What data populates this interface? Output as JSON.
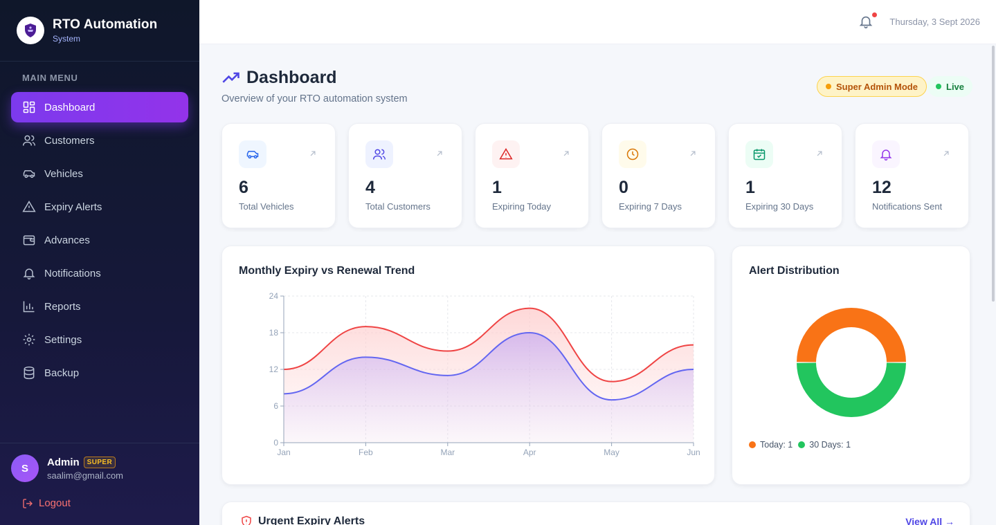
{
  "brand": {
    "title": "RTO Automation",
    "subtitle": "System"
  },
  "sidebar": {
    "caption": "MAIN MENU",
    "items": [
      {
        "label": "Dashboard",
        "icon": "grid-icon",
        "active": true
      },
      {
        "label": "Customers",
        "icon": "users-icon"
      },
      {
        "label": "Vehicles",
        "icon": "car-icon"
      },
      {
        "label": "Expiry Alerts",
        "icon": "warning-icon"
      },
      {
        "label": "Advances",
        "icon": "wallet-icon"
      },
      {
        "label": "Notifications",
        "icon": "bell-icon"
      },
      {
        "label": "Reports",
        "icon": "bar-chart-icon"
      },
      {
        "label": "Settings",
        "icon": "gear-icon"
      },
      {
        "label": "Backup",
        "icon": "database-icon"
      }
    ]
  },
  "user": {
    "initial": "S",
    "name": "Admin",
    "role": "SUPER",
    "email": "saalim@gmail.com",
    "logout": "Logout"
  },
  "topbar": {
    "date": "Thursday, 3 Sept 2026",
    "has_unread": true
  },
  "page": {
    "title": "Dashboard",
    "subtitle": "Overview of your RTO automation system",
    "mode_badge": "Super Admin Mode",
    "live_badge": "Live"
  },
  "stats": [
    {
      "value": "6",
      "label": "Total Vehicles",
      "icon": "car-icon",
      "color": "#2563eb",
      "bg": "#eff6ff"
    },
    {
      "value": "4",
      "label": "Total Customers",
      "icon": "users-icon",
      "color": "#4f46e5",
      "bg": "#eef2ff"
    },
    {
      "value": "1",
      "label": "Expiring Today",
      "icon": "warning-icon",
      "color": "#dc2626",
      "bg": "#fef2f2"
    },
    {
      "value": "0",
      "label": "Expiring 7 Days",
      "icon": "clock-icon",
      "color": "#d97706",
      "bg": "#fffbeb"
    },
    {
      "value": "1",
      "label": "Expiring 30 Days",
      "icon": "calendar-check-icon",
      "color": "#059669",
      "bg": "#ecfdf5"
    },
    {
      "value": "12",
      "label": "Notifications Sent",
      "icon": "bell-icon",
      "color": "#9333ea",
      "bg": "#faf5ff"
    }
  ],
  "trend": {
    "title": "Monthly Expiry vs Renewal Trend"
  },
  "distribution": {
    "title": "Alert Distribution",
    "legend": [
      {
        "label": "Today: 1",
        "color": "#f97316"
      },
      {
        "label": "30 Days: 1",
        "color": "#22c55e"
      }
    ]
  },
  "urgent": {
    "title": "Urgent Expiry Alerts",
    "view_all": "View All →"
  },
  "chart_data": [
    {
      "type": "area",
      "title": "Monthly Expiry vs Renewal Trend",
      "categories": [
        "Jan",
        "Feb",
        "Mar",
        "Apr",
        "May",
        "Jun"
      ],
      "ylim": [
        0,
        24
      ],
      "yticks": [
        0,
        6,
        12,
        18,
        24
      ],
      "grid": true,
      "series": [
        {
          "values": [
            12,
            19,
            15,
            22,
            10,
            16
          ],
          "color": "#ef4444"
        },
        {
          "values": [
            8,
            14,
            11,
            18,
            7,
            12
          ],
          "color": "#6366f1"
        }
      ]
    },
    {
      "type": "pie",
      "title": "Alert Distribution",
      "categories": [
        "Today",
        "30 Days"
      ],
      "values": [
        1,
        1
      ],
      "colors": [
        "#f97316",
        "#22c55e"
      ]
    }
  ]
}
